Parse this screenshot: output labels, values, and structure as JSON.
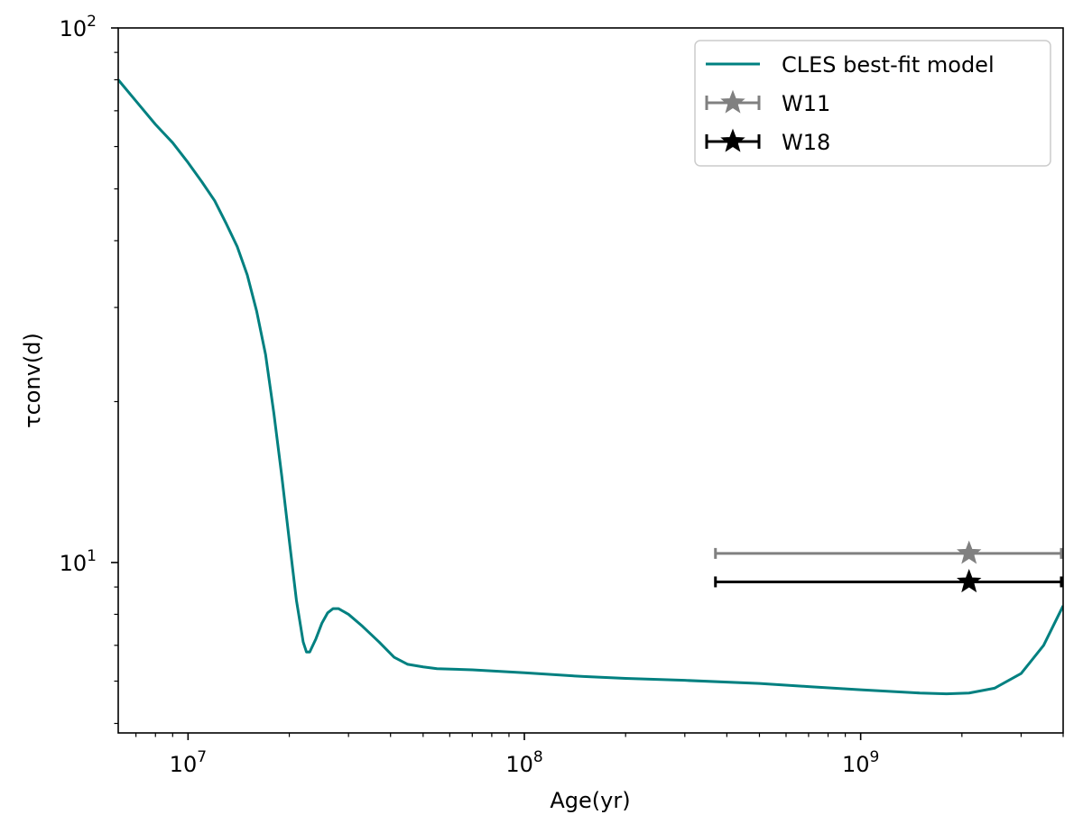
{
  "chart_data": {
    "type": "line",
    "xlabel": "Age(yr)",
    "ylabel": "τconv(d)",
    "x_scale": "log",
    "y_scale": "log",
    "xlim": [
      6200000,
      4000000000
    ],
    "ylim": [
      4.8,
      100
    ],
    "x_major_ticks": [
      {
        "value": 10000000,
        "base": "10",
        "exp": "7"
      },
      {
        "value": 100000000,
        "base": "10",
        "exp": "8"
      },
      {
        "value": 1000000000,
        "base": "10",
        "exp": "9"
      }
    ],
    "y_major_ticks": [
      {
        "value": 10,
        "base": "10",
        "exp": "1"
      },
      {
        "value": 100,
        "base": "10",
        "exp": "2"
      }
    ],
    "grid": false,
    "legend_position": "top-right",
    "colors": {
      "model": "#008080",
      "w11": "#808080",
      "w18": "#000000"
    },
    "series": [
      {
        "name": "CLES best-fit model",
        "kind": "line",
        "color": "#008080",
        "points": [
          [
            6200000,
            80
          ],
          [
            7000000,
            73
          ],
          [
            8000000,
            66
          ],
          [
            9000000,
            61
          ],
          [
            10000000,
            56
          ],
          [
            11000000,
            51.5
          ],
          [
            12000000,
            47.5
          ],
          [
            13000000,
            43
          ],
          [
            14000000,
            39
          ],
          [
            15000000,
            34.5
          ],
          [
            16000000,
            29.5
          ],
          [
            17000000,
            24.5
          ],
          [
            18000000,
            19
          ],
          [
            19000000,
            14.5
          ],
          [
            20000000,
            11
          ],
          [
            21000000,
            8.5
          ],
          [
            22000000,
            7.1
          ],
          [
            22500000,
            6.8
          ],
          [
            23000000,
            6.8
          ],
          [
            24000000,
            7.2
          ],
          [
            25000000,
            7.7
          ],
          [
            26000000,
            8.05
          ],
          [
            27000000,
            8.2
          ],
          [
            28000000,
            8.2
          ],
          [
            30000000,
            8.0
          ],
          [
            33000000,
            7.6
          ],
          [
            37000000,
            7.1
          ],
          [
            41000000,
            6.65
          ],
          [
            45000000,
            6.45
          ],
          [
            50000000,
            6.38
          ],
          [
            55000000,
            6.33
          ],
          [
            70000000,
            6.3
          ],
          [
            100000000,
            6.22
          ],
          [
            150000000,
            6.12
          ],
          [
            200000000,
            6.07
          ],
          [
            300000000,
            6.02
          ],
          [
            500000000,
            5.94
          ],
          [
            700000000,
            5.86
          ],
          [
            1000000000,
            5.78
          ],
          [
            1500000000,
            5.7
          ],
          [
            1800000000,
            5.68
          ],
          [
            2100000000,
            5.7
          ],
          [
            2500000000,
            5.82
          ],
          [
            3000000000,
            6.2
          ],
          [
            3500000000,
            7.0
          ],
          [
            4000000000,
            8.3
          ]
        ]
      },
      {
        "name": "W11",
        "kind": "errorbar",
        "color": "#808080",
        "x": 2100000000,
        "y": 10.4,
        "xerr": [
          370000000,
          3950000000
        ]
      },
      {
        "name": "W18",
        "kind": "errorbar",
        "color": "#000000",
        "x": 2100000000,
        "y": 9.2,
        "xerr": [
          370000000,
          3950000000
        ]
      }
    ]
  }
}
